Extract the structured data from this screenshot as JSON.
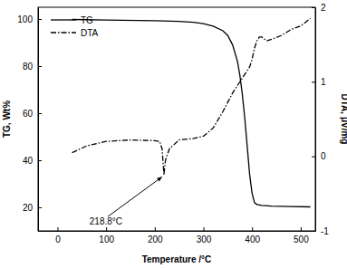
{
  "chart_data": {
    "type": "line",
    "x_label": "Temperature /°C",
    "y_label": "TG, Wt%",
    "y2_label": "DTA, μV/mg",
    "xlim": [
      -40,
      530
    ],
    "xticks": [
      0,
      100,
      200,
      300,
      400,
      500
    ],
    "ylim": [
      10,
      105
    ],
    "yticks": [
      20,
      40,
      60,
      80,
      100
    ],
    "y2lim": [
      -1,
      2
    ],
    "y2ticks": [
      -1,
      0,
      1,
      2
    ],
    "legend": "upper left",
    "series": [
      {
        "name": "TG",
        "color": "#000000",
        "line_style": "solid",
        "axis": "y",
        "x": [
          30,
          100,
          200,
          250,
          280,
          300,
          320,
          340,
          350,
          360,
          370,
          375,
          380,
          385,
          390,
          395,
          400,
          405,
          410,
          420,
          440,
          480,
          520
        ],
        "values": [
          99.8,
          99.6,
          99.3,
          99.0,
          98.6,
          98.0,
          97,
          95,
          93,
          89,
          82,
          76,
          68,
          58,
          46,
          34,
          26,
          22,
          21.2,
          20.8,
          20.5,
          20.3,
          20.2
        ]
      },
      {
        "name": "DTA",
        "color": "#000000",
        "line_style": "dashdot",
        "axis": "y2",
        "x": [
          30,
          60,
          100,
          150,
          200,
          210,
          215,
          218.8,
          222,
          230,
          250,
          280,
          300,
          320,
          340,
          360,
          380,
          390,
          395,
          400,
          405,
          410,
          415,
          420,
          430,
          440,
          460,
          480,
          500,
          520
        ],
        "values": [
          0.05,
          0.14,
          0.2,
          0.22,
          0.21,
          0.2,
          0.1,
          -0.25,
          -0.05,
          0.1,
          0.22,
          0.24,
          0.27,
          0.38,
          0.6,
          0.85,
          1.05,
          1.15,
          1.2,
          1.3,
          1.45,
          1.55,
          1.6,
          1.6,
          1.55,
          1.57,
          1.62,
          1.7,
          1.75,
          1.85
        ]
      }
    ],
    "annotations": [
      {
        "text": "218.8°C",
        "x": 218.8,
        "y": -0.25
      }
    ]
  }
}
